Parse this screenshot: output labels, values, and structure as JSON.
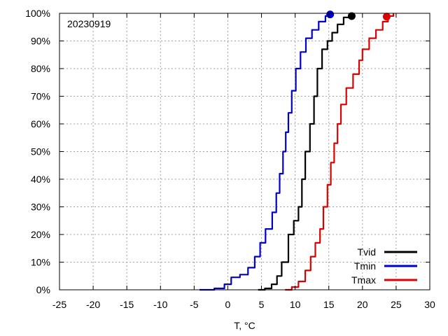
{
  "chart_data": {
    "type": "line",
    "annotation": "20230919",
    "xlabel": "T, °C",
    "ylabel": "",
    "xlim": [
      -25,
      30
    ],
    "ylim": [
      0,
      100
    ],
    "x_ticks": [
      -25,
      -20,
      -15,
      -10,
      -5,
      0,
      5,
      10,
      15,
      20,
      25,
      30
    ],
    "y_ticks": [
      0,
      10,
      20,
      30,
      40,
      50,
      60,
      70,
      80,
      90,
      100
    ],
    "x_tick_labels": [
      "-25",
      "-20",
      "-15",
      "-10",
      "-5",
      "0",
      "5",
      "10",
      "15",
      "20",
      "25",
      "30"
    ],
    "y_tick_labels": [
      "0%",
      "10%",
      "20%",
      "30%",
      "40%",
      "50%",
      "60%",
      "70%",
      "80%",
      "90%",
      "100%"
    ],
    "grid": true,
    "legend_position": "bottom-right",
    "series": [
      {
        "name": "Tvid",
        "color": "#000000",
        "points": [
          [
            4.5,
            0
          ],
          [
            5.5,
            0.5
          ],
          [
            6.5,
            2
          ],
          [
            7.3,
            5
          ],
          [
            8,
            10
          ],
          [
            9,
            20
          ],
          [
            9.8,
            25
          ],
          [
            10.5,
            30
          ],
          [
            11,
            40
          ],
          [
            11.5,
            50
          ],
          [
            12.2,
            60
          ],
          [
            12.8,
            70
          ],
          [
            13.3,
            80
          ],
          [
            14,
            87
          ],
          [
            14.8,
            90
          ],
          [
            15.5,
            93
          ],
          [
            16.3,
            96
          ],
          [
            17.2,
            98.5
          ],
          [
            18,
            99
          ]
        ],
        "end_marker": [
          18.4,
          99
        ]
      },
      {
        "name": "Tmin",
        "color": "#0000cc",
        "points": [
          [
            -4.2,
            0
          ],
          [
            -2,
            0.5
          ],
          [
            -0.5,
            2
          ],
          [
            0.5,
            4.5
          ],
          [
            1.8,
            5.5
          ],
          [
            3,
            8
          ],
          [
            4,
            12
          ],
          [
            4.8,
            17
          ],
          [
            5.6,
            22
          ],
          [
            6.6,
            28
          ],
          [
            7.2,
            35
          ],
          [
            7.7,
            42
          ],
          [
            8.2,
            50
          ],
          [
            8.6,
            57
          ],
          [
            9,
            64
          ],
          [
            9.5,
            72
          ],
          [
            10.1,
            80
          ],
          [
            10.8,
            86
          ],
          [
            11.6,
            91
          ],
          [
            12.5,
            94
          ],
          [
            13.5,
            97
          ],
          [
            14.5,
            99
          ],
          [
            15.2,
            100
          ]
        ],
        "end_marker": [
          15.2,
          99.6
        ]
      },
      {
        "name": "Tmax",
        "color": "#dd0000",
        "points": [
          [
            8.5,
            0
          ],
          [
            9.5,
            1
          ],
          [
            10.5,
            3
          ],
          [
            11.5,
            7
          ],
          [
            12.3,
            12
          ],
          [
            13,
            17
          ],
          [
            13.7,
            22
          ],
          [
            14.2,
            30
          ],
          [
            14.8,
            38
          ],
          [
            15.3,
            46
          ],
          [
            15.8,
            53
          ],
          [
            16.3,
            60
          ],
          [
            16.8,
            67
          ],
          [
            17.6,
            73
          ],
          [
            18.6,
            78
          ],
          [
            19.5,
            83
          ],
          [
            20,
            87
          ],
          [
            21,
            91
          ],
          [
            22,
            94
          ],
          [
            23,
            97
          ],
          [
            23.8,
            99
          ],
          [
            24.6,
            100
          ]
        ],
        "end_marker": [
          23.6,
          98.8
        ]
      }
    ]
  }
}
